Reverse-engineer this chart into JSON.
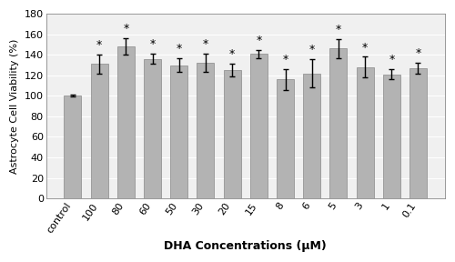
{
  "categories": [
    "control",
    "100",
    "80",
    "60",
    "50",
    "30",
    "20",
    "15",
    "8",
    "6",
    "5",
    "3",
    "1",
    "0.1"
  ],
  "values": [
    100,
    131,
    148,
    136,
    130,
    132,
    125,
    141,
    116,
    122,
    146,
    128,
    121,
    127
  ],
  "errors": [
    1,
    9,
    8,
    5,
    7,
    9,
    6,
    4,
    10,
    14,
    9,
    10,
    5,
    5
  ],
  "bar_color": "#b3b3b3",
  "bar_edgecolor": "#888888",
  "xlabel": "DHA Concentrations (μM)",
  "ylabel": "Astrocyte Cell Viability (%)",
  "ylim": [
    0,
    180
  ],
  "yticks": [
    0,
    20,
    40,
    60,
    80,
    100,
    120,
    140,
    160,
    180
  ],
  "star_indices": [
    1,
    2,
    3,
    4,
    5,
    6,
    7,
    8,
    9,
    10,
    11,
    12,
    13
  ],
  "background_color": "#ffffff",
  "plot_bg_color": "#f0f0f0",
  "grid_color": "#ffffff",
  "xlabel_fontsize": 9,
  "ylabel_fontsize": 8,
  "tick_fontsize": 8,
  "star_fontsize": 9,
  "bar_width": 0.65,
  "figsize": [
    5.0,
    2.88
  ],
  "dpi": 100
}
